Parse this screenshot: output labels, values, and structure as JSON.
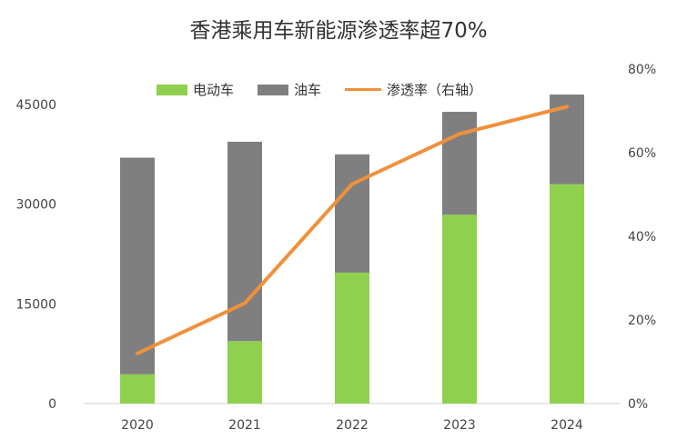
{
  "chart_data": {
    "type": "bar",
    "stacked": true,
    "title": "香港乘用车新能源渗透率超70%",
    "categories": [
      "2020",
      "2021",
      "2022",
      "2023",
      "2024"
    ],
    "series": [
      {
        "name": "电动车",
        "kind": "bar",
        "axis": "left",
        "color": "#8fd14f",
        "values": [
          4400,
          9400,
          19700,
          28400,
          33000
        ]
      },
      {
        "name": "油车",
        "kind": "bar",
        "axis": "left",
        "color": "#7f7f7f",
        "values": [
          32600,
          30000,
          17800,
          15500,
          13500
        ]
      },
      {
        "name": "渗透率（右轴）",
        "kind": "line",
        "axis": "right",
        "color": "#f0913c",
        "values": [
          12,
          24,
          52.5,
          64.5,
          71
        ]
      }
    ],
    "left_axis": {
      "min": 0,
      "max": 45000,
      "ticks": [
        "0",
        "15000",
        "30000",
        "45000"
      ],
      "tick_values": [
        0,
        15000,
        30000,
        45000
      ]
    },
    "right_axis": {
      "min": 0,
      "max": 80,
      "unit": "%",
      "ticks": [
        "0%",
        "20%",
        "40%",
        "60%",
        "80%"
      ],
      "tick_values": [
        0,
        20,
        40,
        60,
        80
      ]
    },
    "grid": false,
    "legend_position": "top"
  }
}
